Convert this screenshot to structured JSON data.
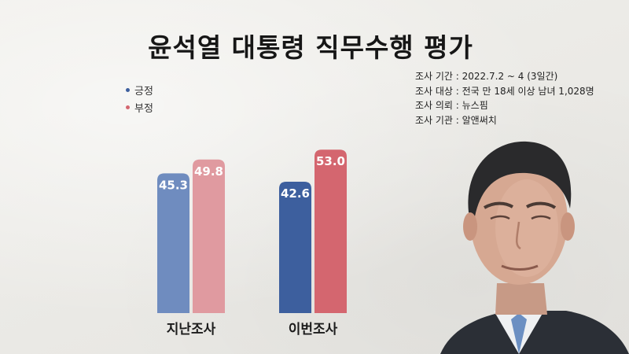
{
  "title": "윤석열 대통령 직무수행 평가",
  "legend": [
    {
      "label": "긍정",
      "color": "#3d5f9e"
    },
    {
      "label": "부정",
      "color": "#d4666f"
    }
  ],
  "survey_info": [
    "조사 기간 : 2022.7.2 ~ 4 (3일간)",
    "조사 대상 : 전국 만 18세 이상 남녀 1,028명",
    "조사 의뢰 : 뉴스핌",
    "조사 기관 : 알앤써치"
  ],
  "chart_data": {
    "type": "bar",
    "categories": [
      "지난조사",
      "이번조사"
    ],
    "series": [
      {
        "name": "긍정",
        "values": [
          45.3,
          42.6
        ],
        "colors": [
          "#6f8cbf",
          "#3d5f9e"
        ]
      },
      {
        "name": "부정",
        "values": [
          49.8,
          53.0
        ],
        "colors": [
          "#e09aa0",
          "#d4666f"
        ]
      }
    ],
    "title": "윤석열 대통령 직무수행 평가",
    "xlabel": "",
    "ylabel": "",
    "ylim": [
      0,
      60
    ],
    "grid": false,
    "legend": "top-left"
  },
  "icons": {
    "portrait": "person-portrait-icon"
  }
}
